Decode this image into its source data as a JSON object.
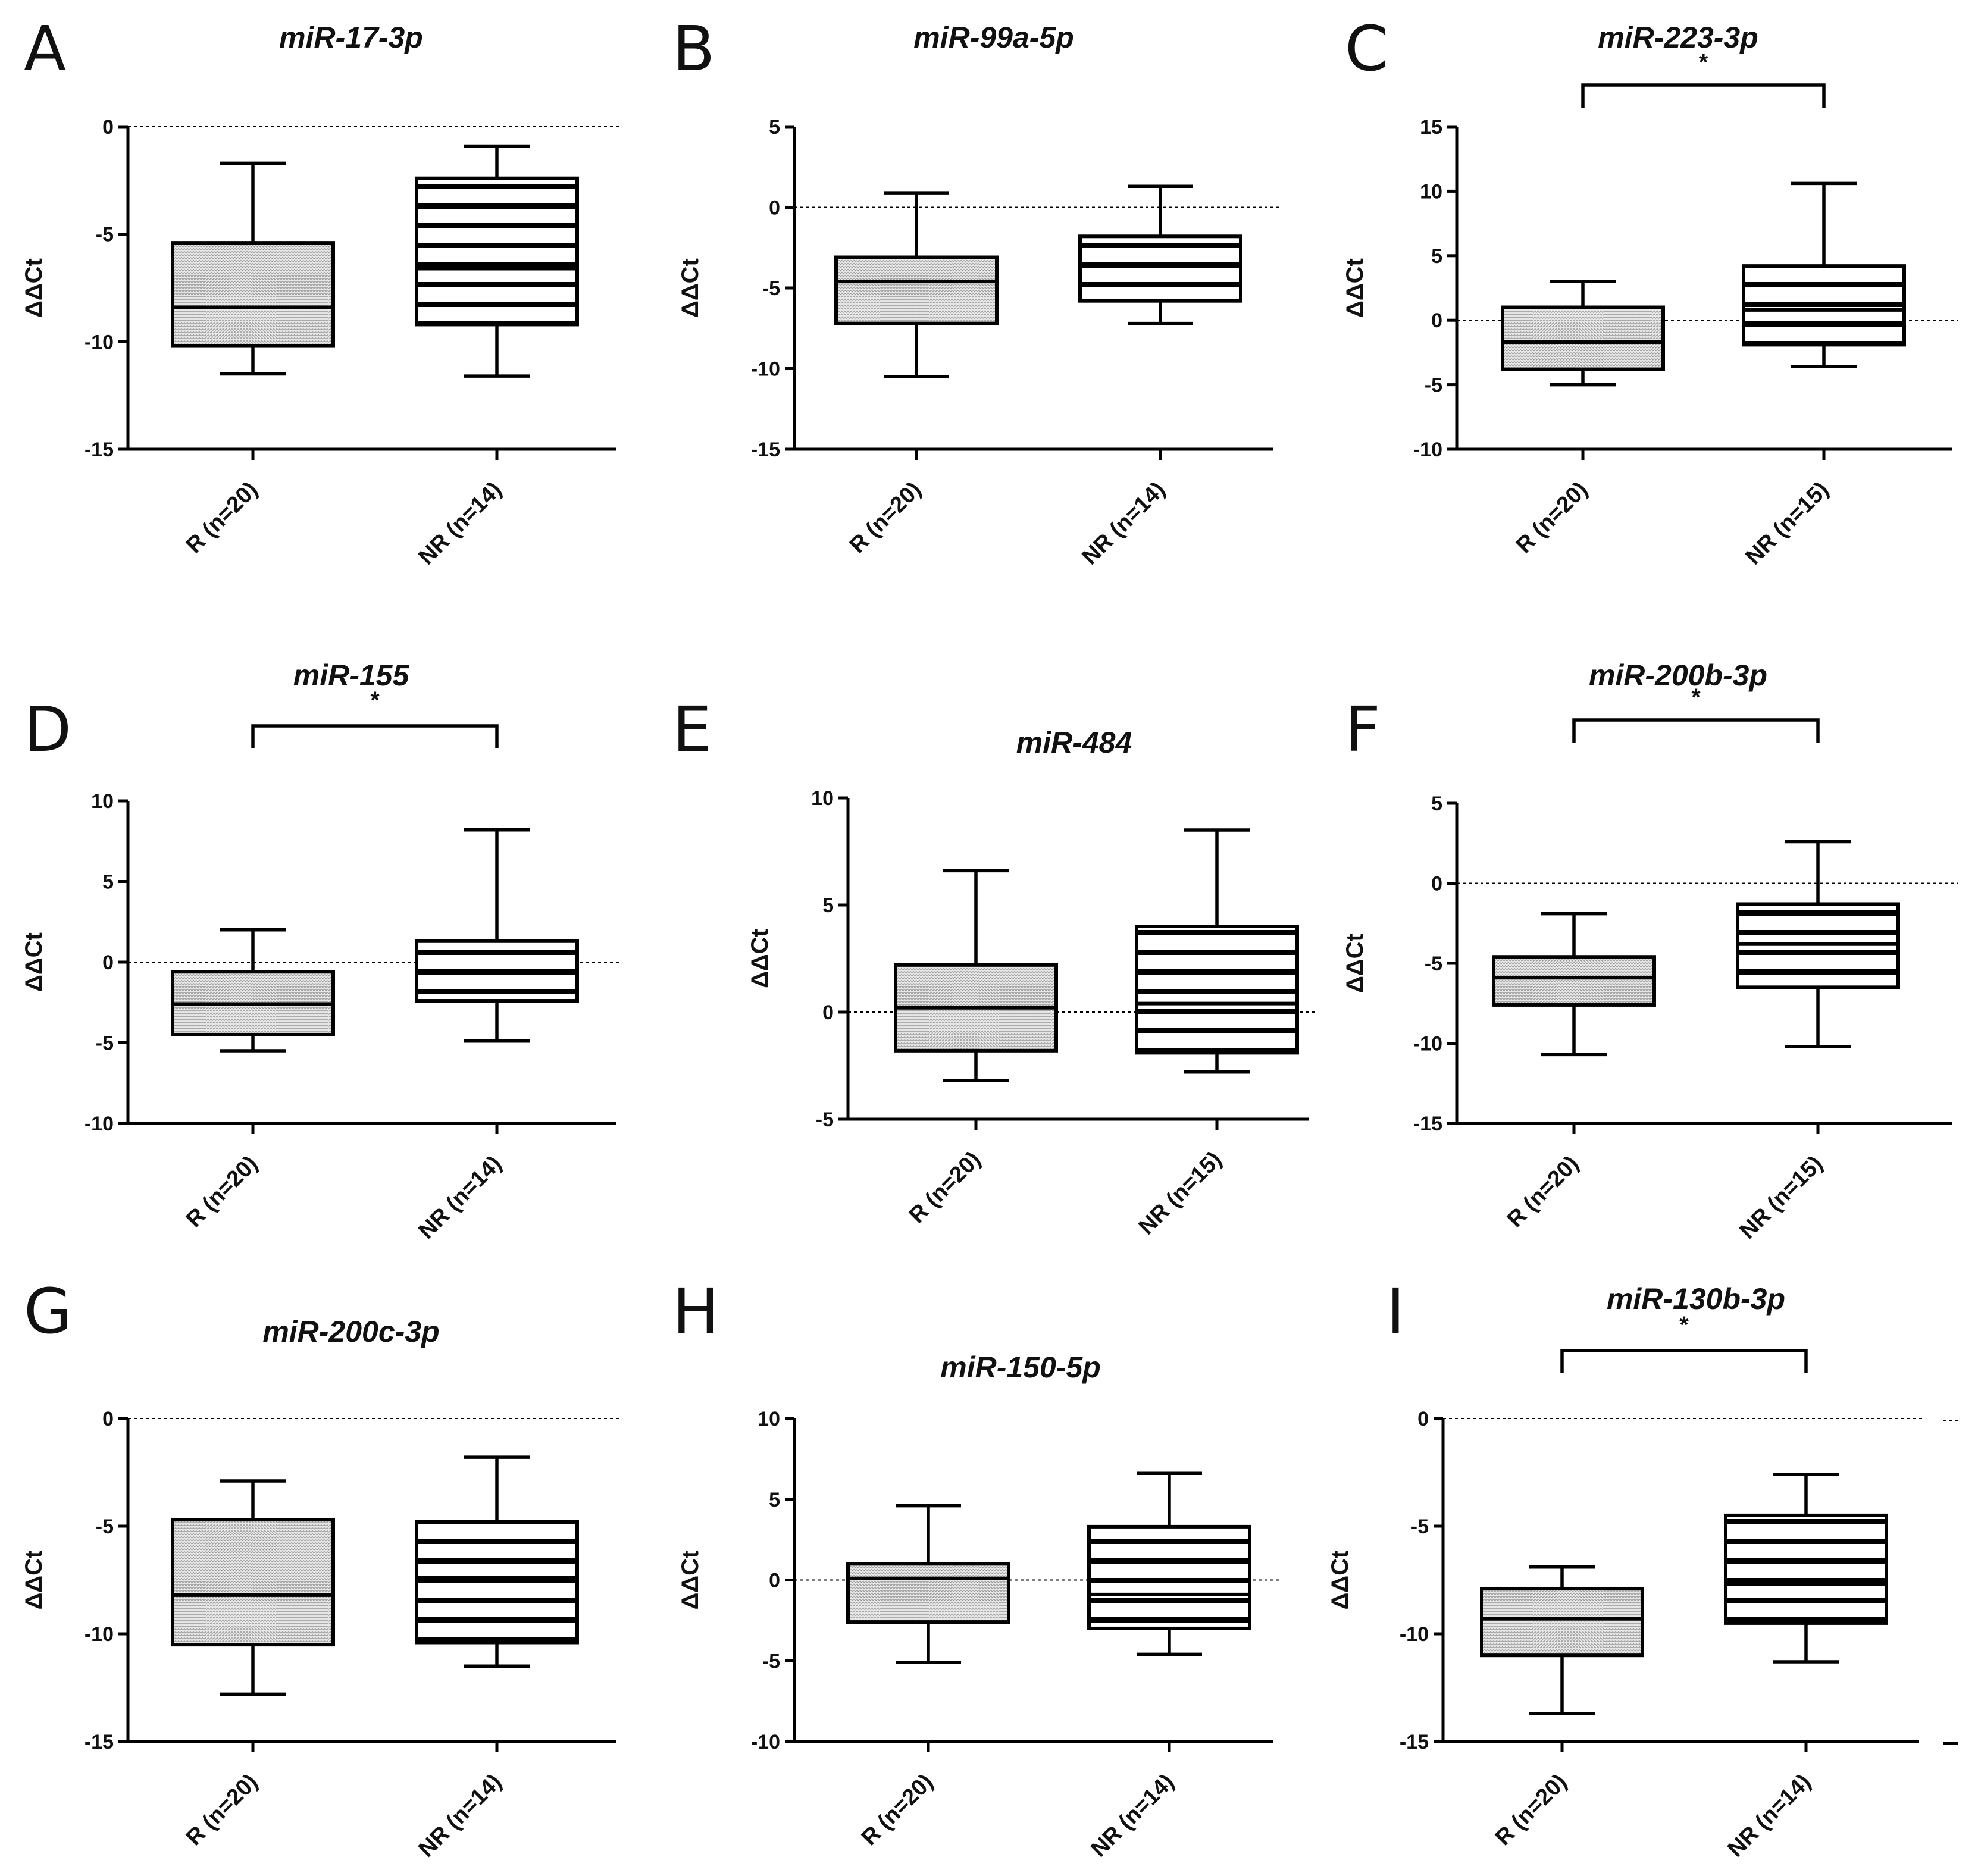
{
  "figure": {
    "axis_label": "ΔΔCt"
  },
  "chart_data": [
    {
      "type": "box",
      "panel": "A",
      "title": "miR-17-3p",
      "ylabel": "ΔΔCt",
      "ylim": [
        -15,
        0
      ],
      "yticks": [
        0,
        -5,
        -10,
        -15
      ],
      "reference_line": 0,
      "categories": [
        "R (n=20)",
        "NR (n=14)"
      ],
      "boxes": [
        {
          "name": "R (n=20)",
          "min": -11.5,
          "q1": -10.2,
          "median": -8.4,
          "q3": -5.4,
          "max": -1.7
        },
        {
          "name": "NR (n=14)",
          "min": -11.6,
          "q1": -9.2,
          "median": -6.6,
          "q3": -2.4,
          "max": -0.9
        }
      ],
      "significance": null
    },
    {
      "type": "box",
      "panel": "B",
      "title": "miR-99a-5p",
      "ylabel": "ΔΔCt",
      "ylim": [
        -15,
        5
      ],
      "yticks": [
        5,
        0,
        -5,
        -10,
        -15
      ],
      "reference_line": 0,
      "categories": [
        "R (n=20)",
        "NR (n=14)"
      ],
      "boxes": [
        {
          "name": "R (n=20)",
          "min": -10.5,
          "q1": -7.2,
          "median": -4.6,
          "q3": -3.1,
          "max": 0.9
        },
        {
          "name": "NR (n=14)",
          "min": -7.2,
          "q1": -5.8,
          "median": -3.6,
          "q3": -1.8,
          "max": 1.3
        }
      ],
      "significance": null
    },
    {
      "type": "box",
      "panel": "C",
      "title": "miR-223-3p",
      "ylabel": "ΔΔCt",
      "ylim": [
        -10,
        15
      ],
      "yticks": [
        15,
        10,
        5,
        0,
        -5,
        -10
      ],
      "reference_line": 0,
      "categories": [
        "R (n=20)",
        "NR (n=15)"
      ],
      "boxes": [
        {
          "name": "R (n=20)",
          "min": -5.0,
          "q1": -3.8,
          "median": -1.7,
          "q3": 1.0,
          "max": 3.0
        },
        {
          "name": "NR (n=15)",
          "min": -3.6,
          "q1": -1.9,
          "median": 0.8,
          "q3": 4.2,
          "max": 10.6
        }
      ],
      "significance": "*"
    },
    {
      "type": "box",
      "panel": "D",
      "title": "miR-155",
      "ylabel": "ΔΔCt",
      "ylim": [
        -10,
        10
      ],
      "yticks": [
        10,
        5,
        0,
        -5,
        -10
      ],
      "reference_line": 0,
      "categories": [
        "R (n=20)",
        "NR (n=14)"
      ],
      "boxes": [
        {
          "name": "R (n=20)",
          "min": -5.5,
          "q1": -4.5,
          "median": -2.6,
          "q3": -0.6,
          "max": 2.0
        },
        {
          "name": "NR (n=14)",
          "min": -4.9,
          "q1": -2.4,
          "median": -0.6,
          "q3": 1.3,
          "max": 8.2
        }
      ],
      "significance": "*"
    },
    {
      "type": "box",
      "panel": "E",
      "title": "miR-484",
      "ylabel": "ΔΔCt",
      "ylim": [
        -5,
        10
      ],
      "yticks": [
        10,
        5,
        0,
        -5
      ],
      "reference_line": 0,
      "categories": [
        "R (n=20)",
        "NR (n=15)"
      ],
      "boxes": [
        {
          "name": "R (n=20)",
          "min": -3.2,
          "q1": -1.8,
          "median": 0.2,
          "q3": 2.2,
          "max": 6.6
        },
        {
          "name": "NR (n=15)",
          "min": -2.8,
          "q1": -1.9,
          "median": 0.4,
          "q3": 4.0,
          "max": 8.5
        }
      ],
      "significance": null
    },
    {
      "type": "box",
      "panel": "F",
      "title": "miR-200b-3p",
      "ylabel": "ΔΔCt",
      "ylim": [
        -15,
        5
      ],
      "yticks": [
        5,
        0,
        -5,
        -10,
        -15
      ],
      "reference_line": 0,
      "categories": [
        "R (n=20)",
        "NR (n=15)"
      ],
      "boxes": [
        {
          "name": "R (n=20)",
          "min": -10.7,
          "q1": -7.6,
          "median": -5.9,
          "q3": -4.6,
          "max": -1.9
        },
        {
          "name": "NR (n=15)",
          "min": -10.2,
          "q1": -6.5,
          "median": -3.8,
          "q3": -1.3,
          "max": 2.6
        }
      ],
      "significance": "*"
    },
    {
      "type": "box",
      "panel": "G",
      "title": "miR-200c-3p",
      "ylabel": "ΔΔCt",
      "ylim": [
        -15,
        0
      ],
      "yticks": [
        0,
        -5,
        -10,
        -15
      ],
      "reference_line": 0,
      "categories": [
        "R (n=20)",
        "NR (n=14)"
      ],
      "boxes": [
        {
          "name": "R (n=20)",
          "min": -12.8,
          "q1": -10.5,
          "median": -8.2,
          "q3": -4.7,
          "max": -2.9
        },
        {
          "name": "NR (n=14)",
          "min": -11.5,
          "q1": -10.4,
          "median": -7.4,
          "q3": -4.8,
          "max": -1.8
        }
      ],
      "significance": null
    },
    {
      "type": "box",
      "panel": "H",
      "title": "miR-150-5p",
      "ylabel": "ΔΔCt",
      "ylim": [
        -10,
        10
      ],
      "yticks": [
        10,
        5,
        0,
        -5,
        -10
      ],
      "reference_line": 0,
      "categories": [
        "R (n=20)",
        "NR (n=14)"
      ],
      "boxes": [
        {
          "name": "R (n=20)",
          "min": -5.1,
          "q1": -2.6,
          "median": 0.1,
          "q3": 1.0,
          "max": 4.6
        },
        {
          "name": "NR (n=14)",
          "min": -4.6,
          "q1": -3.0,
          "median": -0.9,
          "q3": 3.3,
          "max": 6.6
        }
      ],
      "significance": null
    },
    {
      "type": "box",
      "panel": "I",
      "title": "miR-130b-3p",
      "ylabel": "ΔΔCt",
      "ylim": [
        -15,
        0
      ],
      "yticks": [
        0,
        -5,
        -10,
        -15
      ],
      "reference_line": 0,
      "categories": [
        "R (n=20)",
        "NR (n=14)"
      ],
      "boxes": [
        {
          "name": "R (n=20)",
          "min": -13.7,
          "q1": -11.0,
          "median": -9.3,
          "q3": -7.9,
          "max": -6.9
        },
        {
          "name": "NR (n=14)",
          "min": -11.3,
          "q1": -9.5,
          "median": -7.7,
          "q3": -4.5,
          "max": -2.6
        }
      ],
      "significance": "*"
    }
  ]
}
